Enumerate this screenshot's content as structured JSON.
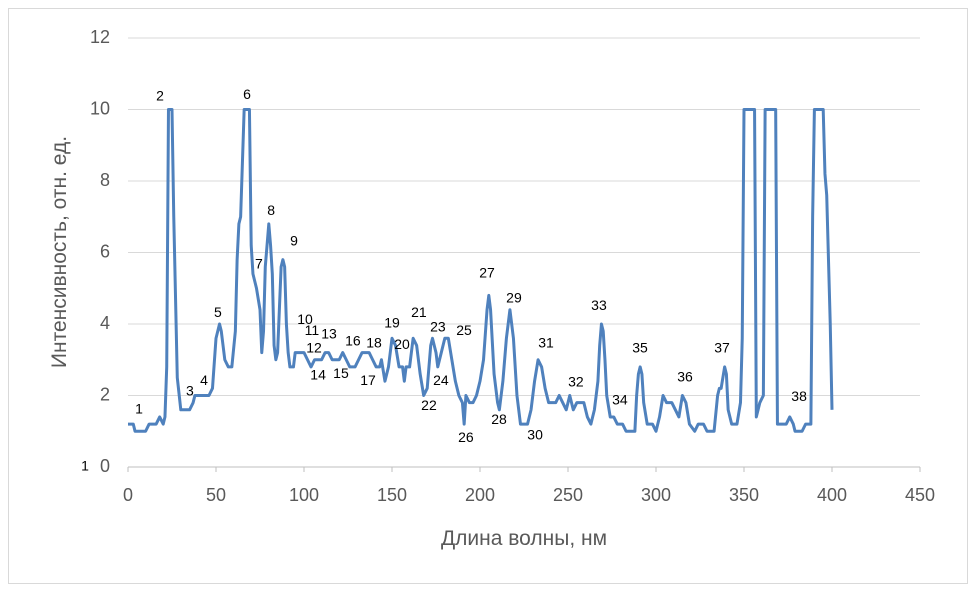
{
  "chart_data": {
    "type": "line",
    "xlabel": "Длина волны, нм",
    "ylabel": "Интенсивность, отн. ед.",
    "color": "#4f81bd",
    "grid": true,
    "xlim": [
      0,
      450
    ],
    "xticks": [
      0,
      50,
      100,
      150,
      200,
      250,
      300,
      350,
      400,
      450
    ],
    "ylim": [
      0,
      12
    ],
    "yticks": [
      0,
      2,
      4,
      6,
      8,
      10,
      12
    ],
    "x": [
      0,
      3,
      4,
      10,
      12,
      16,
      18,
      20,
      21,
      22,
      23,
      25,
      26,
      28,
      30,
      35,
      37,
      38,
      46,
      48,
      50,
      52,
      53,
      55,
      57,
      59,
      61,
      62,
      63,
      64,
      65,
      66,
      69,
      70,
      71,
      73,
      75,
      76,
      77,
      78,
      80,
      81,
      82,
      83,
      84,
      85,
      87,
      88,
      89,
      90,
      91,
      92,
      94,
      95,
      100,
      102,
      104,
      106,
      110,
      112,
      114,
      116,
      120,
      122,
      124,
      126,
      129,
      131,
      133,
      137,
      139,
      141,
      143,
      144,
      146,
      148,
      150,
      152,
      154,
      156,
      157,
      158,
      160,
      162,
      164,
      166,
      168,
      170,
      172,
      173,
      175,
      176,
      178,
      180,
      182,
      184,
      186,
      188,
      190,
      191,
      192,
      194,
      196,
      198,
      200,
      202,
      204,
      205,
      206,
      208,
      210,
      211,
      213,
      215,
      217,
      219,
      221,
      223,
      227,
      229,
      231,
      233,
      235,
      237,
      239,
      243,
      245,
      247,
      249,
      251,
      253,
      255,
      259,
      261,
      263,
      265,
      267,
      268,
      269,
      270,
      271,
      272,
      274,
      276,
      278,
      281,
      283,
      288,
      289,
      290,
      291,
      292,
      293,
      295,
      298,
      300,
      302,
      304,
      306,
      309,
      311,
      313,
      315,
      317,
      319,
      322,
      324,
      327,
      329,
      333,
      335,
      336,
      337,
      339,
      340,
      341,
      343,
      346,
      348,
      349,
      350,
      356,
      357,
      359,
      361,
      362,
      368,
      369,
      374,
      376,
      378,
      379,
      383,
      385,
      388,
      389,
      390,
      395,
      396,
      397,
      399,
      400
    ],
    "values": [
      1.2,
      1.2,
      1.0,
      1.0,
      1.2,
      1.2,
      1.4,
      1.2,
      1.4,
      2.8,
      10,
      10,
      7,
      2.5,
      1.6,
      1.6,
      1.8,
      2.0,
      2.0,
      2.2,
      3.6,
      4.0,
      3.8,
      3.0,
      2.8,
      2.8,
      3.8,
      5.8,
      6.8,
      7.0,
      8.5,
      10,
      10,
      6.2,
      5.4,
      5.0,
      4.4,
      3.2,
      3.8,
      5.6,
      6.8,
      6.2,
      5.4,
      3.4,
      3.0,
      3.2,
      5.6,
      5.8,
      5.6,
      4.0,
      3.2,
      2.8,
      2.8,
      3.2,
      3.2,
      3.0,
      2.8,
      3.0,
      3.0,
      3.2,
      3.2,
      3.0,
      3.0,
      3.2,
      3.0,
      2.8,
      2.8,
      3.0,
      3.2,
      3.2,
      3.0,
      2.8,
      2.8,
      3.0,
      2.4,
      2.8,
      3.6,
      3.4,
      2.8,
      2.8,
      2.4,
      2.8,
      2.8,
      3.6,
      3.4,
      2.6,
      2.0,
      2.2,
      3.4,
      3.6,
      3.2,
      2.8,
      3.2,
      3.6,
      3.6,
      3.0,
      2.4,
      2.0,
      1.8,
      1.2,
      2.0,
      1.8,
      1.8,
      2.0,
      2.4,
      3.0,
      4.4,
      4.8,
      4.4,
      2.6,
      1.8,
      1.6,
      2.4,
      3.6,
      4.4,
      3.6,
      2.0,
      1.2,
      1.2,
      1.6,
      2.4,
      3.0,
      2.8,
      2.2,
      1.8,
      1.8,
      2.0,
      1.8,
      1.6,
      2.0,
      1.6,
      1.8,
      1.8,
      1.4,
      1.2,
      1.6,
      2.4,
      3.4,
      4.0,
      3.8,
      3.0,
      2.0,
      1.4,
      1.4,
      1.2,
      1.2,
      1.0,
      1.0,
      2.0,
      2.6,
      2.8,
      2.6,
      1.8,
      1.2,
      1.2,
      1.0,
      1.4,
      2.0,
      1.8,
      1.8,
      1.6,
      1.4,
      2.0,
      1.8,
      1.2,
      1.0,
      1.2,
      1.2,
      1.0,
      1.0,
      2.0,
      2.2,
      2.2,
      2.8,
      2.6,
      1.6,
      1.2,
      1.2,
      1.8,
      3.6,
      10,
      10,
      1.4,
      1.8,
      2.0,
      10,
      10,
      1.2,
      1.2,
      1.4,
      1.2,
      1.0,
      1.0,
      1.2,
      1.2,
      7,
      10,
      10,
      8.2,
      7.6,
      4,
      1.6
    ],
    "annotations": [
      {
        "text": "1",
        "x": 6.25,
        "y": 1.6
      },
      {
        "text": "2",
        "x": 18.2,
        "y": 10.35
      },
      {
        "text": "3",
        "x": 35.2,
        "y": 2.1
      },
      {
        "text": "4",
        "x": 43.2,
        "y": 2.4
      },
      {
        "text": "5",
        "x": 51.1,
        "y": 4.3
      },
      {
        "text": "6",
        "x": 67.6,
        "y": 10.4
      },
      {
        "text": "7",
        "x": 74.4,
        "y": 5.65
      },
      {
        "text": "8",
        "x": 81.3,
        "y": 7.15
      },
      {
        "text": "9",
        "x": 94.3,
        "y": 6.3
      },
      {
        "text": "10",
        "x": 100.6,
        "y": 4.1
      },
      {
        "text": "11",
        "x": 104.5,
        "y": 3.8
      },
      {
        "text": "12",
        "x": 105.7,
        "y": 3.3
      },
      {
        "text": "13",
        "x": 114.2,
        "y": 3.7
      },
      {
        "text": "14",
        "x": 108,
        "y": 2.55
      },
      {
        "text": "15",
        "x": 121,
        "y": 2.6
      },
      {
        "text": "16",
        "x": 127.8,
        "y": 3.5
      },
      {
        "text": "17",
        "x": 136.4,
        "y": 2.4
      },
      {
        "text": "18",
        "x": 139.8,
        "y": 3.45
      },
      {
        "text": "19",
        "x": 150,
        "y": 4.0
      },
      {
        "text": "20",
        "x": 155.7,
        "y": 3.4
      },
      {
        "text": "21",
        "x": 165.3,
        "y": 4.3
      },
      {
        "text": "22",
        "x": 171,
        "y": 1.7
      },
      {
        "text": "23",
        "x": 176.1,
        "y": 3.9
      },
      {
        "text": "24",
        "x": 177.8,
        "y": 2.4
      },
      {
        "text": "25",
        "x": 190.9,
        "y": 3.8
      },
      {
        "text": "26",
        "x": 192,
        "y": 0.8
      },
      {
        "text": "27",
        "x": 204,
        "y": 5.4
      },
      {
        "text": "28",
        "x": 210.8,
        "y": 1.3
      },
      {
        "text": "29",
        "x": 219.3,
        "y": 4.7
      },
      {
        "text": "30",
        "x": 231.3,
        "y": 0.87
      },
      {
        "text": "31",
        "x": 237.5,
        "y": 3.45
      },
      {
        "text": "32",
        "x": 254.5,
        "y": 2.35
      },
      {
        "text": "33",
        "x": 267.6,
        "y": 4.5
      },
      {
        "text": "34",
        "x": 279.5,
        "y": 1.85
      },
      {
        "text": "35",
        "x": 290.9,
        "y": 3.3
      },
      {
        "text": "36",
        "x": 316.5,
        "y": 2.5
      },
      {
        "text": "37",
        "x": 337.5,
        "y": 3.3
      },
      {
        "text": "38",
        "x": 381.3,
        "y": 1.95
      },
      {
        "text": "1",
        "x": -24.4,
        "y": 0
      }
    ]
  }
}
